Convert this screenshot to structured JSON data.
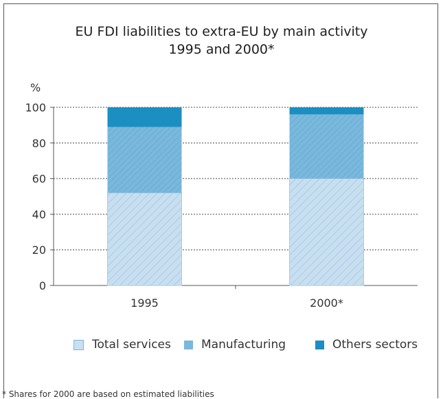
{
  "chart_data": {
    "type": "bar",
    "stacked": true,
    "title": "EU FDI liabilities to extra-EU by main activity",
    "subtitle": "1995 and 2000*",
    "ylabel": "%",
    "xlabel": "",
    "ylim": [
      0,
      100
    ],
    "yticks": [
      0,
      20,
      40,
      60,
      80,
      100
    ],
    "categories": [
      "1995",
      "2000*"
    ],
    "series": [
      {
        "name": "Total services",
        "values": [
          52,
          60
        ],
        "color": "#c8dff0"
      },
      {
        "name": "Manufacturing",
        "values": [
          37,
          36
        ],
        "color": "#7ab8dc"
      },
      {
        "name": "Others sectors",
        "values": [
          11,
          4
        ],
        "color": "#1b8fc2"
      }
    ],
    "grid": true,
    "legend": "bottom"
  },
  "footnote": "* Shares for 2000 are based on estimated liabilities"
}
